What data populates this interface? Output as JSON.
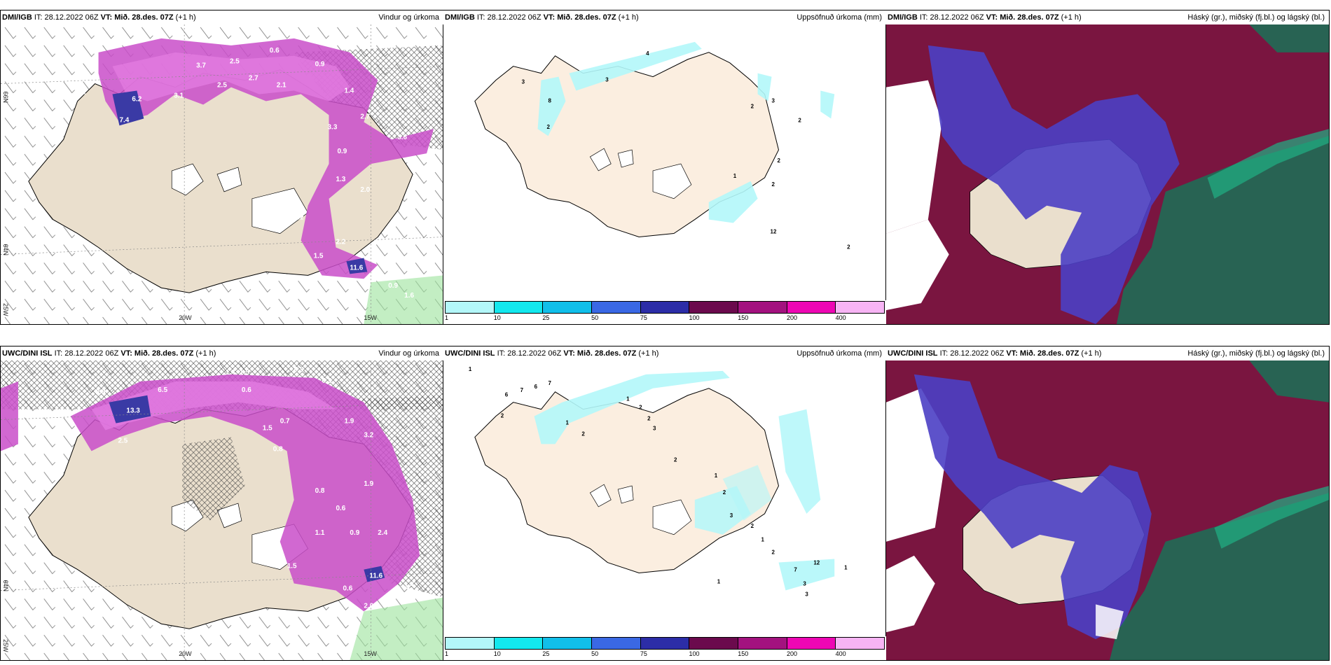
{
  "rows": [
    {
      "model": "DMI/IGB",
      "panels": [
        {
          "model": "DMI/IGB",
          "it": "IT: 28.12.2022 06Z",
          "vt_label": "VT:",
          "vt": "Mið. 28.des. 07Z",
          "lead": "(+1 h)",
          "title": "Vindur og úrkoma"
        },
        {
          "model": "DMI/IGB",
          "it": "IT: 28.12.2022 06Z",
          "vt_label": "VT:",
          "vt": "Mið. 28.des. 07Z",
          "lead": "(+1 h)",
          "title": "Uppsöfnuð úrkoma (mm)"
        },
        {
          "model": "DMI/IGB",
          "it": "IT: 28.12.2022 06Z",
          "vt_label": "VT:",
          "vt": "Mið. 28.des. 07Z",
          "lead": "(+1 h)",
          "title": "Háský (gr.), miðský (fj.bl.) og lágský (bl.)"
        }
      ]
    },
    {
      "model": "UWC/DINI ISL",
      "panels": [
        {
          "model": "UWC/DINI ISL",
          "it": "IT: 28.12.2022 06Z",
          "vt_label": "VT:",
          "vt": "Mið. 28.des. 07Z",
          "lead": "(+1 h)",
          "title": "Vindur og úrkoma"
        },
        {
          "model": "UWC/DINI ISL",
          "it": "IT: 28.12.2022 06Z",
          "vt_label": "VT:",
          "vt": "Mið. 28.des. 07Z",
          "lead": "(+1 h)",
          "title": "Uppsöfnuð úrkoma (mm)"
        },
        {
          "model": "UWC/DINI ISL",
          "it": "IT: 28.12.2022 06Z",
          "vt_label": "VT:",
          "vt": "Mið. 28.des. 07Z",
          "lead": "(+1 h)",
          "title": "Háský (gr.), miðský (fj.bl.) og lágský (bl.)"
        }
      ]
    }
  ],
  "axes": {
    "lon_20": "20W",
    "lon_15": "15W",
    "lat_66": "66N",
    "lat_64": "64N",
    "lat_25": "25W"
  },
  "colorbar": {
    "labels": [
      "1",
      "10",
      "25",
      "50",
      "75",
      "100",
      "150",
      "200",
      "400"
    ],
    "colors": [
      "#b3f7f9",
      "#13e8ee",
      "#11bfea",
      "#3a68e4",
      "#2c2da7",
      "#6b0a4d",
      "#a3127f",
      "#ee06b4",
      "#f7b4f4"
    ]
  },
  "wind_precip_values": {
    "row0": [
      "3.7",
      "2.5",
      "0.6",
      "0.9",
      "2.1",
      "3.1",
      "6.2",
      "7.4",
      "2.5",
      "2.7",
      "2.1",
      "1.4",
      "3.3",
      "0.9",
      "2.7",
      "3.6",
      "1.3",
      "2.0",
      "1.2",
      "2.2",
      "1.5",
      "11.6",
      "0.9",
      "1.6"
    ],
    "row1": [
      "1.4",
      "1.5",
      "0.5",
      "0.3",
      "0.7",
      "2.8",
      "13.3",
      "2.5",
      "6.5",
      "0.6",
      "1.9",
      "3.2",
      "1.5",
      "0.8",
      "0.8",
      "1.9",
      "0.6",
      "1.1",
      "0.9",
      "2.4",
      "1.5",
      "11.6",
      "1.4",
      "0.6",
      "2.0"
    ]
  },
  "accum_values": {
    "row0": [
      "4",
      "3",
      "3",
      "8",
      "2",
      "2",
      "3",
      "2",
      "1",
      "2",
      "2",
      "12",
      "2"
    ],
    "row1": [
      "1",
      "6",
      "7",
      "6",
      "7",
      "2",
      "1",
      "2",
      "1",
      "2",
      "2",
      "3",
      "2",
      "1",
      "2",
      "3",
      "2",
      "1",
      "2",
      "7",
      "12",
      "1",
      "3",
      "3",
      "1"
    ]
  },
  "cloud_colors": {
    "high": "#7a1540",
    "mid": "#4b3fc4",
    "low": "#1f6b55",
    "land": "#eadfcd"
  }
}
